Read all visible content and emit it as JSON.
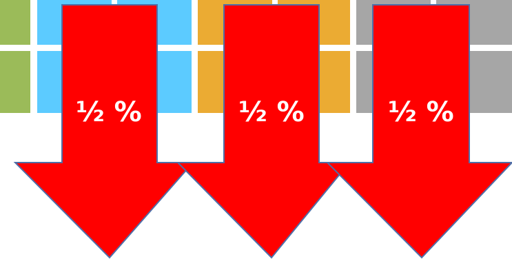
{
  "colors": {
    "green": "#9bbb59",
    "blue": "#5ccbff",
    "orange": "#ebab33",
    "gray": "#a6a6a6",
    "arrow_fill": "#ff0000",
    "arrow_stroke": "#4f6fa8",
    "label": "#ffffff"
  },
  "arrows": [
    {
      "label": "½ %"
    },
    {
      "label": "½ %"
    },
    {
      "label": "½ %"
    }
  ]
}
